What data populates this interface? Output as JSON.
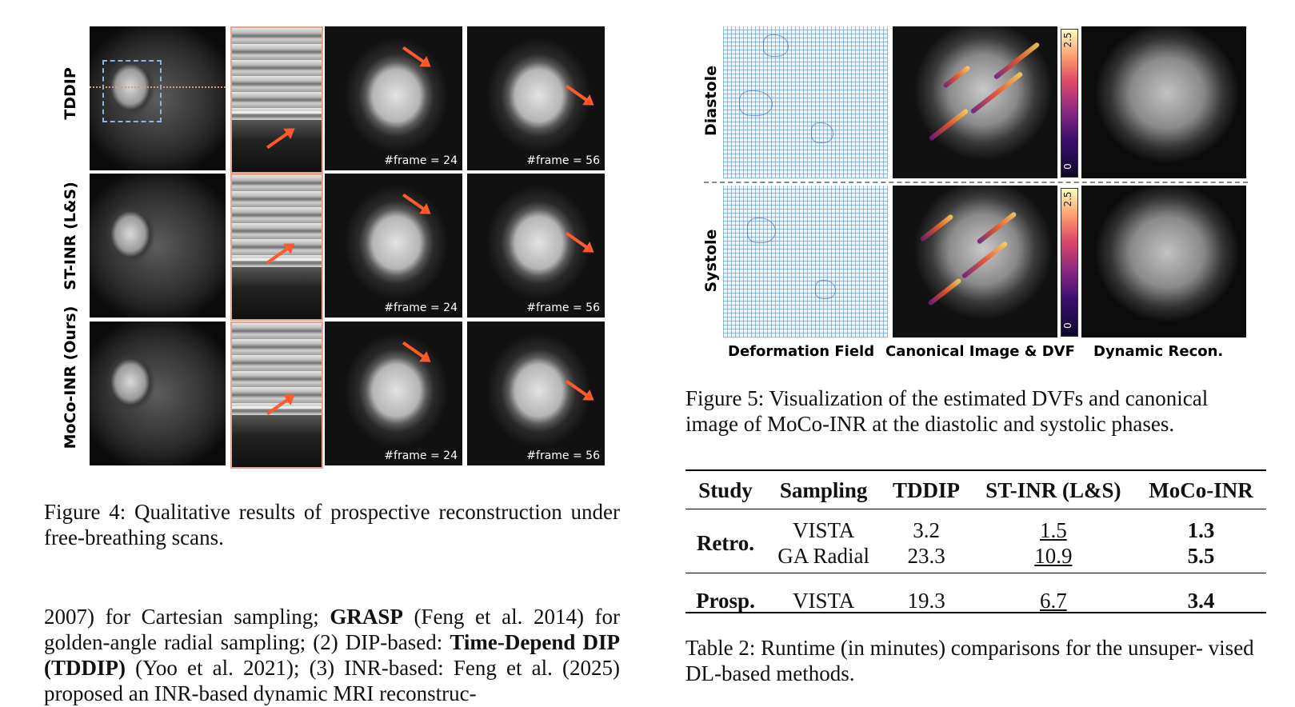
{
  "figure4": {
    "row_labels": [
      "TDDIP",
      "ST-INR (L&S)",
      "MoCo-INR (Ours)"
    ],
    "frame_labels": [
      "#frame = 24",
      "#frame = 56"
    ],
    "caption": "Figure 4: Qualitative results of prospective reconstruction under free-breathing scans.",
    "arrow_color": "#ff5a2a"
  },
  "figure5": {
    "row_labels": [
      "Diastole",
      "Systole"
    ],
    "col_labels": [
      "Deformation Field",
      "Canonical Image & DVF",
      "Dynamic Recon."
    ],
    "colorbar_max": "2.5",
    "colorbar_min": "0",
    "caption": "Figure 5: Visualization of the estimated DVFs and canonical image of MoCo-INR at the diastolic and systolic phases."
  },
  "table2": {
    "headers": [
      "Study",
      "Sampling",
      "TDDIP",
      "ST-INR (L&S)",
      "MoCo-INR"
    ],
    "groups": [
      {
        "study": "Retro.",
        "rows": [
          {
            "sampling": "VISTA",
            "tddip": "3.2",
            "stinr": "1.5",
            "moco": "1.3"
          },
          {
            "sampling": "GA Radial",
            "tddip": "23.3",
            "stinr": "10.9",
            "moco": "5.5"
          }
        ]
      },
      {
        "study": "Prosp.",
        "rows": [
          {
            "sampling": "VISTA",
            "tddip": "19.3",
            "stinr": "6.7",
            "moco": "3.4"
          }
        ]
      }
    ],
    "caption": "Table 2: Runtime (in minutes) comparisons for the unsuper- vised DL-based methods."
  },
  "body_text": {
    "p1_a": "2007) for Cartesian sampling; ",
    "p1_b": "GRASP",
    "p1_c": " (Feng et al. 2014) for golden-angle radial sampling; (2) DIP-based: ",
    "p1_d": "Time-Depend DIP (TDDIP)",
    "p1_e": " (Yoo et al. 2021); (3) INR-based: Feng et al. (2025) proposed an INR-based dynamic MRI reconstruc-"
  }
}
